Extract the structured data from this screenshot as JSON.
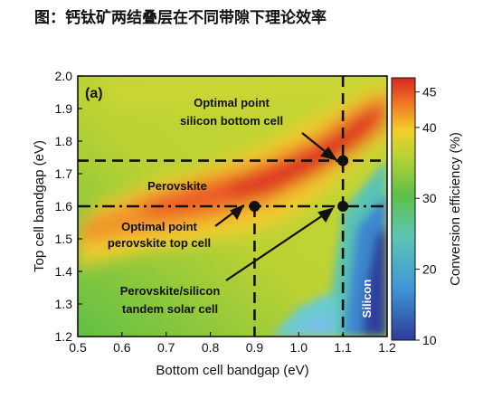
{
  "caption": "图：钙钛矿两结叠层在不同带隙下理论效率",
  "chart_data": {
    "type": "heatmap",
    "panel_label": "(a)",
    "xlabel": "Bottom cell bandgap (eV)",
    "ylabel": "Top cell bandgap (eV)",
    "xlim": [
      0.5,
      1.2
    ],
    "ylim": [
      1.2,
      2.0
    ],
    "x_ticks": [
      "0.5",
      "0.6",
      "0.7",
      "0.8",
      "0.9",
      "1.0",
      "1.1",
      "1.2"
    ],
    "y_ticks": [
      "1.2",
      "1.3",
      "1.4",
      "1.5",
      "1.6",
      "1.7",
      "1.8",
      "1.9",
      "2.0"
    ],
    "colorbar": {
      "label": "Conversion efficiency (%)",
      "range": [
        10,
        47
      ],
      "ticks": [
        "10",
        "20",
        "30",
        "40",
        "45"
      ]
    },
    "guide_lines": [
      {
        "orientation": "horizontal",
        "value": 1.74,
        "style": "dashed"
      },
      {
        "orientation": "horizontal",
        "value": 1.6,
        "style": "dash-dot"
      },
      {
        "orientation": "vertical",
        "value": 0.9,
        "style": "dashed"
      },
      {
        "orientation": "vertical",
        "value": 1.1,
        "style": "dashed"
      }
    ],
    "points": [
      {
        "x": 1.1,
        "y": 1.74
      },
      {
        "x": 0.9,
        "y": 1.6
      },
      {
        "x": 1.1,
        "y": 1.6
      }
    ],
    "annotations": [
      {
        "lines": [
          "Optimal point",
          "silicon bottom cell"
        ]
      },
      {
        "lines": [
          "Perovskite"
        ]
      },
      {
        "lines": [
          "Optimal point",
          "perovskite top cell"
        ]
      },
      {
        "lines": [
          "Perovskite/silicon",
          "tandem solar cell"
        ]
      },
      {
        "lines": [
          "Silicon"
        ]
      }
    ]
  }
}
